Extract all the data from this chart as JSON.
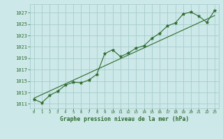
{
  "x": [
    0,
    1,
    2,
    3,
    4,
    5,
    6,
    7,
    8,
    9,
    10,
    11,
    12,
    13,
    14,
    15,
    16,
    17,
    18,
    19,
    20,
    21,
    22,
    23
  ],
  "y": [
    1011.8,
    1011.2,
    1012.5,
    1013.2,
    1014.3,
    1014.8,
    1014.7,
    1015.2,
    1016.2,
    1019.8,
    1020.5,
    1019.3,
    1019.9,
    1020.8,
    1021.2,
    1022.5,
    1023.4,
    1024.7,
    1025.2,
    1026.8,
    1027.1,
    1026.4,
    1025.3,
    1027.4
  ],
  "trend_x": [
    0,
    23
  ],
  "trend_y": [
    1012.0,
    1026.5
  ],
  "line_color": "#2d6a2d",
  "marker_color": "#2d6a2d",
  "trend_color": "#2d6a2d",
  "bg_color": "#cce8e8",
  "grid_color": "#a0c8c8",
  "title": "Graphe pression niveau de la mer (hPa)",
  "ylabel_ticks": [
    1011,
    1013,
    1015,
    1017,
    1019,
    1021,
    1023,
    1025,
    1027
  ],
  "xlim": [
    -0.5,
    23.5
  ],
  "ylim": [
    1010.2,
    1028.5
  ]
}
